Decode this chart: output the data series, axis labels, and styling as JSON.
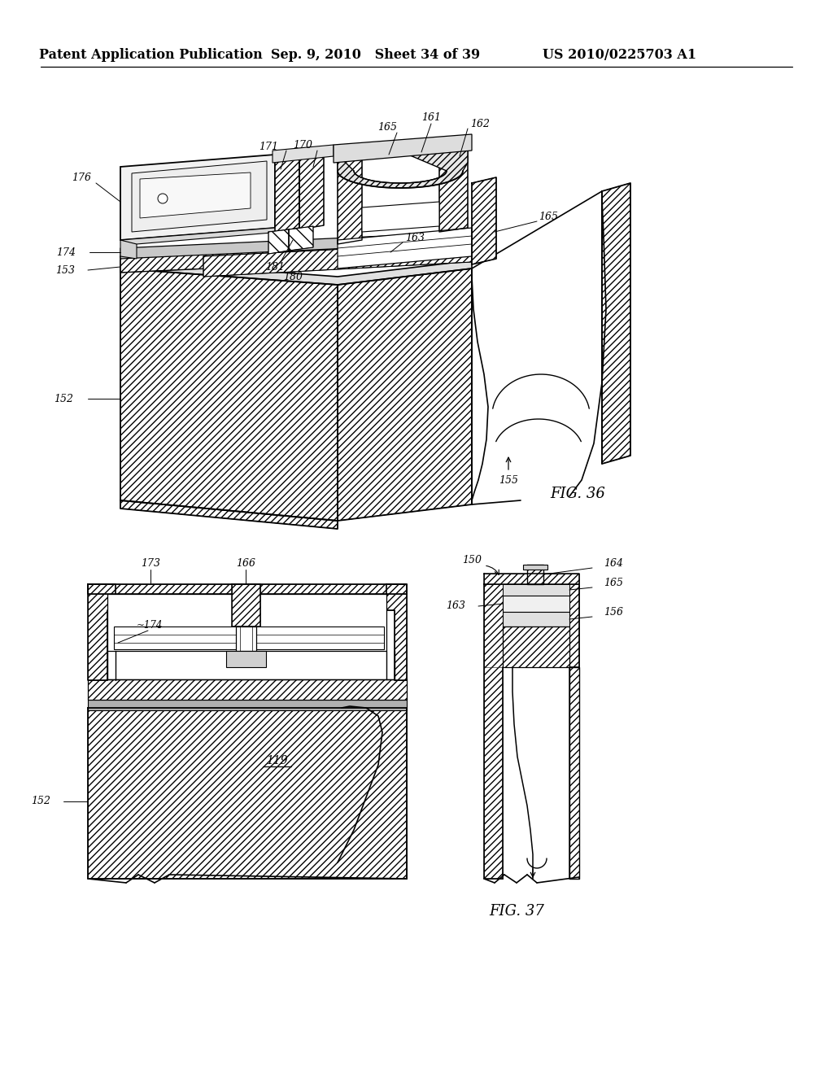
{
  "bg": "#ffffff",
  "header_left": "Patent Application Publication",
  "header_center": "Sep. 9, 2010   Sheet 34 of 39",
  "header_right": "US 2010/0225703 A1",
  "fig36_label": "FIG. 36",
  "fig37_label": "FIG. 37",
  "lw_thick": 1.5,
  "lw_med": 1.0,
  "lw_thin": 0.6,
  "hatch_dense": "////",
  "hatch_diag": "////"
}
